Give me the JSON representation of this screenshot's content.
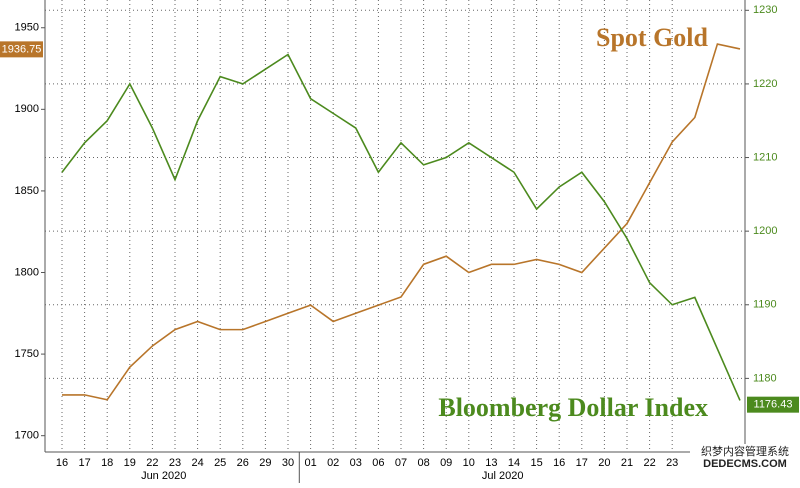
{
  "chart_data": {
    "type": "line",
    "categories": [
      "16",
      "17",
      "18",
      "19",
      "22",
      "23",
      "24",
      "25",
      "26",
      "29",
      "30",
      "01",
      "02",
      "03",
      "06",
      "07",
      "08",
      "09",
      "10",
      "13",
      "14",
      "15",
      "16",
      "17",
      "20",
      "21",
      "22",
      "23",
      null,
      null,
      null
    ],
    "x_groups": [
      "Jun 2020",
      "Jul 2020"
    ],
    "series": [
      {
        "name": "Spot Gold",
        "color": "#b8752a",
        "axis": "y",
        "current": 1936.75,
        "values": [
          1725,
          1725,
          1722,
          1742,
          1755,
          1765,
          1770,
          1765,
          1765,
          1770,
          1775,
          1780,
          1770,
          1775,
          1780,
          1785,
          1805,
          1810,
          1800,
          1805,
          1805,
          1808,
          1805,
          1800,
          1815,
          1830,
          1855,
          1880,
          1895,
          1940,
          1937
        ]
      },
      {
        "name": "Bloomberg Dollar Index",
        "color": "#4c8a1e",
        "axis": "y2",
        "current": 1176.43,
        "values": [
          1208,
          1212,
          1215,
          1220,
          1214,
          1207,
          1215,
          1221,
          1220,
          1222,
          1224,
          1218,
          1216,
          1214,
          1208,
          1212,
          1209,
          1210,
          1212,
          1210,
          1208,
          1203,
          1206,
          1208,
          1204,
          1199,
          1193,
          1190,
          1191,
          1184,
          1177
        ]
      }
    ],
    "ylim": [
      1690,
      1967
    ],
    "yticks": [
      1700,
      1750,
      1800,
      1850,
      1900,
      1950
    ],
    "y2lim": [
      1170,
      1231.4
    ],
    "y2ticks": [
      1180,
      1190,
      1200,
      1210,
      1220,
      1230
    ],
    "grid": "y2",
    "watermark": [
      "织梦内容管理系统",
      "DEDECMS.COM"
    ]
  }
}
